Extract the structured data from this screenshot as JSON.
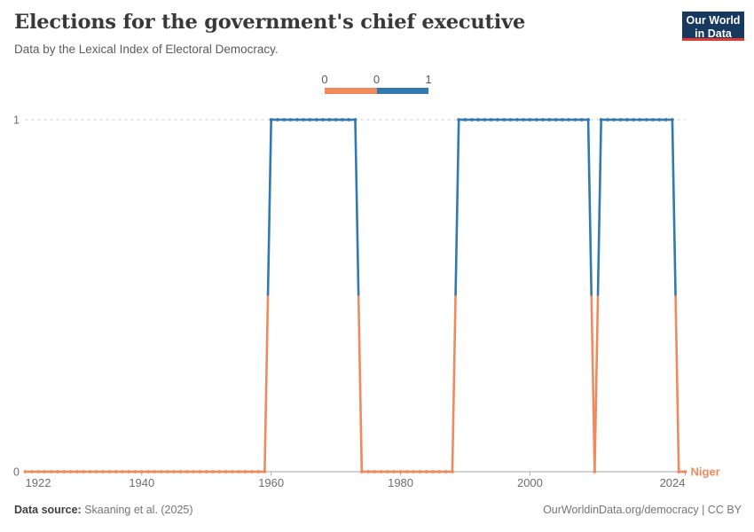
{
  "header": {
    "title": "Elections for the government's chief executive",
    "subtitle": "Data by the Lexical Index of Electoral Democracy.",
    "logo": {
      "line1": "Our World",
      "line2": "in Data"
    }
  },
  "legend": {
    "edge_labels": [
      "0",
      "0",
      "1"
    ],
    "bin_colors": [
      "#F08A5E",
      "#3179AF"
    ]
  },
  "chart_data": {
    "type": "line",
    "title": "Elections for the government's chief executive",
    "entity": "Niger",
    "xlabel": "",
    "ylabel": "",
    "xlim": [
      1922,
      2024
    ],
    "ylim": [
      0,
      1
    ],
    "x_ticks": [
      "1922",
      "1940",
      "1960",
      "1980",
      "2000",
      "2024"
    ],
    "y_ticks": [
      "0",
      "1"
    ],
    "grid": "dashed line at y=1, solid axis at y=0",
    "legend_position": "top-center",
    "value_colors": {
      "0": "#F08A5E",
      "1": "#3179AF"
    },
    "series": [
      {
        "name": "Niger",
        "runs": [
          {
            "start_year": 1922,
            "end_year": 1959,
            "value": 0
          },
          {
            "start_year": 1960,
            "end_year": 1973,
            "value": 1
          },
          {
            "start_year": 1974,
            "end_year": 1988,
            "value": 0
          },
          {
            "start_year": 1989,
            "end_year": 2009,
            "value": 1
          },
          {
            "start_year": 2010,
            "end_year": 2010,
            "value": 0
          },
          {
            "start_year": 2011,
            "end_year": 2022,
            "value": 1
          },
          {
            "start_year": 2023,
            "end_year": 2024,
            "value": 0
          }
        ]
      }
    ]
  },
  "footer": {
    "source_label": "Data source:",
    "source_text": "Skaaning et al. (2025)",
    "attribution": "OurWorldinData.org/democracy | CC BY"
  }
}
